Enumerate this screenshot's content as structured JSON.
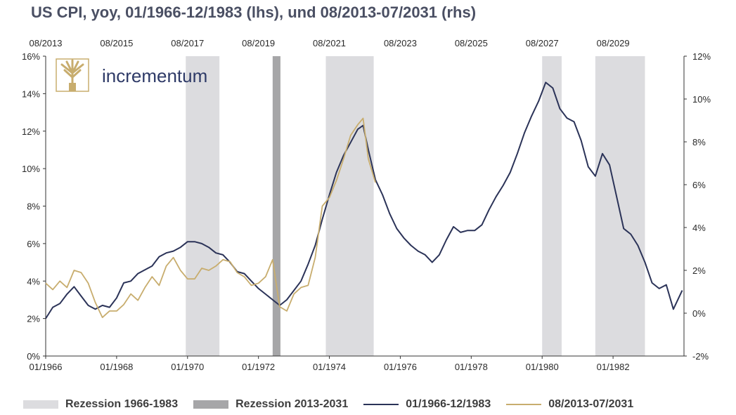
{
  "title": "US CPI, yoy, 01/1966-12/1983 (lhs), und 08/2013-07/2031 (rhs)",
  "logo": {
    "text": "incrementum"
  },
  "colors": {
    "series1": "#2b3358",
    "series2": "#c8ad6e",
    "recession1": "#dcdcdf",
    "recession2": "#a6a6a8"
  },
  "legend": [
    {
      "label": "Rezession 1966-1983",
      "kind": "area",
      "color": "#dcdcdf"
    },
    {
      "label": "Rezession 2013-2031",
      "kind": "area",
      "color": "#a6a6a8"
    },
    {
      "label": "01/1966-12/1983",
      "kind": "line",
      "color": "#2b3358"
    },
    {
      "label": "08/2013-07/2031",
      "kind": "line",
      "color": "#c8ad6e"
    }
  ],
  "chart_data": {
    "type": "line",
    "title": "US CPI, yoy, 01/1966-12/1983 (lhs), und 08/2013-07/2031 (rhs)",
    "x_bottom": {
      "ticks": [
        "01/1966",
        "01/1968",
        "01/1970",
        "01/1972",
        "01/1974",
        "01/1976",
        "01/1978",
        "01/1980",
        "01/1982"
      ],
      "range": [
        1966.0,
        1984.0
      ]
    },
    "x_top": {
      "ticks": [
        "08/2013",
        "08/2015",
        "08/2017",
        "08/2019",
        "08/2021",
        "08/2023",
        "08/2025",
        "08/2027",
        "08/2029"
      ]
    },
    "y_left": {
      "ticks": [
        "0%",
        "2%",
        "4%",
        "6%",
        "8%",
        "10%",
        "12%",
        "14%",
        "16%"
      ],
      "range": [
        0,
        16
      ]
    },
    "y_right": {
      "ticks": [
        "-2%",
        "0%",
        "2%",
        "4%",
        "6%",
        "8%",
        "10%",
        "12%"
      ],
      "range": [
        -2,
        12
      ]
    },
    "recessions": [
      {
        "name": "Rezession 1966-1983",
        "start": 1969.95,
        "end": 1970.9
      },
      {
        "name": "Rezession 1966-1983",
        "start": 1973.9,
        "end": 1975.25
      },
      {
        "name": "Rezession 1966-1983",
        "start": 1980.0,
        "end": 1980.55
      },
      {
        "name": "Rezession 1966-1983",
        "start": 1981.5,
        "end": 1982.9
      },
      {
        "name": "Rezession 2013-2031",
        "start": 1972.4,
        "end": 1972.62
      }
    ],
    "series": [
      {
        "name": "01/1966-12/1983",
        "axis": "left",
        "x": [
          1966.0,
          1966.2,
          1966.4,
          1966.6,
          1966.8,
          1967.0,
          1967.2,
          1967.4,
          1967.6,
          1967.8,
          1968.0,
          1968.2,
          1968.4,
          1968.6,
          1968.8,
          1969.0,
          1969.2,
          1969.4,
          1969.6,
          1969.8,
          1970.0,
          1970.2,
          1970.4,
          1970.6,
          1970.8,
          1971.0,
          1971.2,
          1971.4,
          1971.6,
          1971.8,
          1972.0,
          1972.2,
          1972.4,
          1972.6,
          1972.8,
          1973.0,
          1973.2,
          1973.4,
          1973.6,
          1973.8,
          1974.0,
          1974.2,
          1974.4,
          1974.6,
          1974.8,
          1974.95,
          1975.1,
          1975.3,
          1975.5,
          1975.7,
          1975.9,
          1976.1,
          1976.3,
          1976.5,
          1976.7,
          1976.9,
          1977.1,
          1977.3,
          1977.5,
          1977.7,
          1977.9,
          1978.1,
          1978.3,
          1978.5,
          1978.7,
          1978.9,
          1979.1,
          1979.3,
          1979.5,
          1979.7,
          1979.9,
          1980.1,
          1980.3,
          1980.5,
          1980.7,
          1980.9,
          1981.1,
          1981.3,
          1981.5,
          1981.7,
          1981.9,
          1982.1,
          1982.3,
          1982.5,
          1982.7,
          1982.9,
          1983.1,
          1983.3,
          1983.5,
          1983.7,
          1983.95
        ],
        "values": [
          2.0,
          2.6,
          2.8,
          3.3,
          3.7,
          3.2,
          2.7,
          2.5,
          2.7,
          2.6,
          3.1,
          3.9,
          4.0,
          4.4,
          4.6,
          4.8,
          5.3,
          5.5,
          5.6,
          5.8,
          6.1,
          6.1,
          6.0,
          5.8,
          5.5,
          5.4,
          5.0,
          4.5,
          4.4,
          4.0,
          3.6,
          3.3,
          3.0,
          2.7,
          3.0,
          3.5,
          4.0,
          4.9,
          5.9,
          7.3,
          8.6,
          9.8,
          10.7,
          11.4,
          12.1,
          12.3,
          11.0,
          9.4,
          8.6,
          7.6,
          6.8,
          6.3,
          5.9,
          5.6,
          5.4,
          5.0,
          5.4,
          6.2,
          6.9,
          6.6,
          6.7,
          6.7,
          7.0,
          7.8,
          8.5,
          9.1,
          9.8,
          10.8,
          11.9,
          12.8,
          13.6,
          14.6,
          14.3,
          13.2,
          12.7,
          12.5,
          11.5,
          10.1,
          9.6,
          10.8,
          10.2,
          8.5,
          6.8,
          6.5,
          5.9,
          5.0,
          3.9,
          3.6,
          3.8,
          2.5,
          3.5
        ]
      },
      {
        "name": "08/2013-07/2031",
        "axis": "right",
        "x": [
          1966.0,
          1966.2,
          1966.4,
          1966.6,
          1966.8,
          1967.0,
          1967.2,
          1967.4,
          1967.6,
          1967.8,
          1968.0,
          1968.2,
          1968.4,
          1968.6,
          1968.8,
          1969.0,
          1969.2,
          1969.4,
          1969.6,
          1969.8,
          1970.0,
          1970.2,
          1970.4,
          1970.6,
          1970.8,
          1971.0,
          1971.2,
          1971.4,
          1971.6,
          1971.8,
          1972.0,
          1972.2,
          1972.4,
          1972.6,
          1972.8,
          1973.0,
          1973.2,
          1973.4,
          1973.6,
          1973.8,
          1974.0,
          1974.2,
          1974.4,
          1974.6,
          1974.8,
          1974.95,
          1975.1,
          1975.3
        ],
        "values": [
          1.4,
          1.1,
          1.5,
          1.2,
          2.0,
          1.9,
          1.4,
          0.5,
          -0.2,
          0.1,
          0.1,
          0.4,
          0.9,
          0.6,
          1.2,
          1.7,
          1.3,
          2.2,
          2.6,
          2.0,
          1.6,
          1.6,
          2.1,
          2.0,
          2.2,
          2.5,
          2.4,
          1.9,
          1.7,
          1.3,
          1.4,
          1.7,
          2.5,
          0.3,
          0.1,
          0.9,
          1.2,
          1.3,
          2.6,
          5.0,
          5.4,
          6.2,
          7.2,
          8.3,
          8.8,
          9.1,
          7.2,
          6.1
        ]
      }
    ]
  }
}
